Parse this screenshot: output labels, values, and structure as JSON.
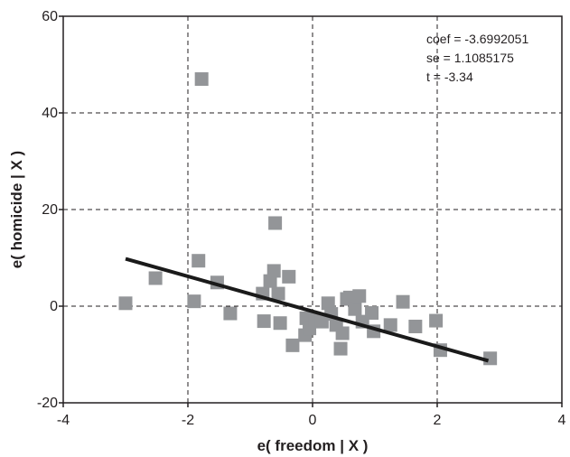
{
  "chart_data": {
    "type": "scatter",
    "xlabel": "e( freedom | X )",
    "ylabel": "e( homicide | X )",
    "xlim": [
      -4,
      4
    ],
    "ylim": [
      -20,
      60
    ],
    "xticks": [
      "-4",
      "-2",
      "0",
      "2",
      "4"
    ],
    "yticks": [
      "-20",
      "0",
      "20",
      "40",
      "60"
    ],
    "xtick_values": [
      -4,
      -2,
      0,
      2,
      4
    ],
    "ytick_values": [
      -20,
      0,
      20,
      40,
      60
    ],
    "grid": true,
    "annotations": [
      "coef = -3.6992051",
      "se = 1.1085175",
      "t = -3.34"
    ],
    "fit_line": {
      "x": [
        -3.0,
        2.82
      ],
      "y": [
        9.8,
        -11.3
      ]
    },
    "points": [
      {
        "x": -1.78,
        "y": 47.0
      },
      {
        "x": -3.0,
        "y": 0.6
      },
      {
        "x": -2.52,
        "y": 5.8
      },
      {
        "x": -1.83,
        "y": 9.4
      },
      {
        "x": -1.9,
        "y": 1.0
      },
      {
        "x": -1.53,
        "y": 4.9
      },
      {
        "x": -1.32,
        "y": -1.5
      },
      {
        "x": -0.8,
        "y": 2.6
      },
      {
        "x": -0.78,
        "y": -3.1
      },
      {
        "x": -0.68,
        "y": 5.2
      },
      {
        "x": -0.62,
        "y": 7.3
      },
      {
        "x": -0.6,
        "y": 17.2
      },
      {
        "x": -0.55,
        "y": 2.6
      },
      {
        "x": -0.52,
        "y": -3.5
      },
      {
        "x": -0.38,
        "y": 6.1
      },
      {
        "x": -0.32,
        "y": -8.1
      },
      {
        "x": -0.12,
        "y": -6.0
      },
      {
        "x": -0.1,
        "y": -2.5
      },
      {
        "x": -0.05,
        "y": -4.6
      },
      {
        "x": 0.05,
        "y": -2.9
      },
      {
        "x": 0.15,
        "y": -3.2
      },
      {
        "x": 0.25,
        "y": 0.6
      },
      {
        "x": 0.3,
        "y": -1.6
      },
      {
        "x": 0.38,
        "y": -3.9
      },
      {
        "x": 0.45,
        "y": -8.8
      },
      {
        "x": 0.48,
        "y": -5.6
      },
      {
        "x": 0.55,
        "y": 1.5
      },
      {
        "x": 0.6,
        "y": 1.8
      },
      {
        "x": 0.68,
        "y": -0.6
      },
      {
        "x": 0.75,
        "y": 2.1
      },
      {
        "x": 0.8,
        "y": -3.2
      },
      {
        "x": 0.95,
        "y": -1.4
      },
      {
        "x": 0.98,
        "y": -5.2
      },
      {
        "x": 1.25,
        "y": -3.9
      },
      {
        "x": 1.45,
        "y": 0.9
      },
      {
        "x": 1.65,
        "y": -4.2
      },
      {
        "x": 1.98,
        "y": -3.0
      },
      {
        "x": 2.05,
        "y": -9.1
      },
      {
        "x": 2.85,
        "y": -10.8
      }
    ]
  }
}
